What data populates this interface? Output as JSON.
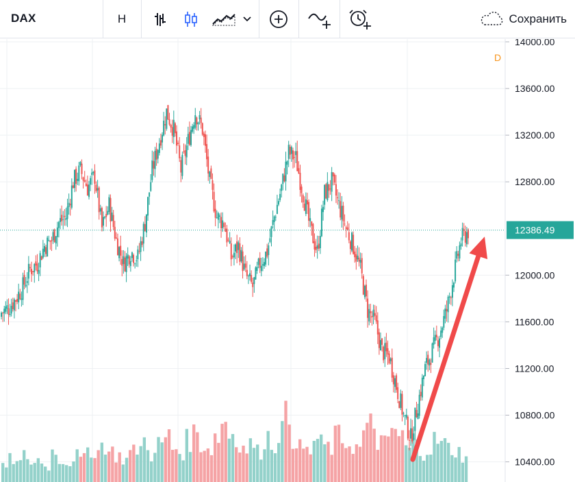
{
  "toolbar": {
    "symbol": "DAX",
    "interval": "Н",
    "save_label": "Сохранить",
    "icons": [
      "bars-icon",
      "candles-icon",
      "area-chart-icon",
      "chevron-down-icon",
      "add-indicator-icon",
      "compare-icon",
      "alert-icon",
      "cloud-icon"
    ]
  },
  "colors": {
    "up": "#26a69a",
    "down": "#ef5350",
    "up_volume": "#93d1ca",
    "down_volume": "#f5a3a5",
    "price_line": "#26a69a",
    "arrow": "#f04a4a",
    "grid": "#eef0f3",
    "d_marker": "#f7931a"
  },
  "chart_data": {
    "type": "candlestick",
    "symbol": "DAX",
    "last_price": "12386.49",
    "interval_marker": "D",
    "y_ticks": [
      "14000.00",
      "13600.00",
      "13200.00",
      "12800.00",
      "12000.00",
      "11600.00",
      "11200.00",
      "10800.00",
      "10400.00"
    ],
    "ylim": [
      10380,
      14000
    ],
    "grid": true,
    "close_values": [
      11680,
      11720,
      11800,
      11900,
      12050,
      12100,
      12250,
      12300,
      12450,
      12500,
      12800,
      12900,
      12750,
      12850,
      12400,
      12600,
      12300,
      12100,
      12200,
      12150,
      12450,
      12900,
      13150,
      13400,
      13250,
      12900,
      13150,
      13400,
      13250,
      12800,
      12500,
      12450,
      12150,
      12250,
      12000,
      11900,
      12100,
      12200,
      12500,
      12750,
      13050,
      13000,
      12700,
      12400,
      12200,
      12700,
      12800,
      12600,
      12400,
      12250,
      12050,
      11700,
      11600,
      11350,
      11300,
      11050,
      10800,
      10600,
      10900,
      11200,
      11350,
      11500,
      11700,
      12000,
      12300,
      12380
    ],
    "volume_values": [
      4,
      6,
      5,
      7,
      5,
      6,
      4,
      8,
      6,
      5,
      7,
      6,
      9,
      8,
      10,
      8,
      7,
      6,
      8,
      9,
      11,
      7,
      10,
      12,
      9,
      8,
      11,
      13,
      10,
      9,
      12,
      16,
      13,
      11,
      9,
      10,
      8,
      12,
      10,
      14,
      17,
      12,
      9,
      8,
      11,
      10,
      9,
      12,
      11,
      10,
      9,
      13,
      15,
      11,
      10,
      14,
      12,
      9,
      10,
      8,
      9,
      11,
      10,
      9,
      8,
      7
    ]
  },
  "annotation": {
    "type": "arrow",
    "from_price": 10420,
    "to_price": 12330
  }
}
